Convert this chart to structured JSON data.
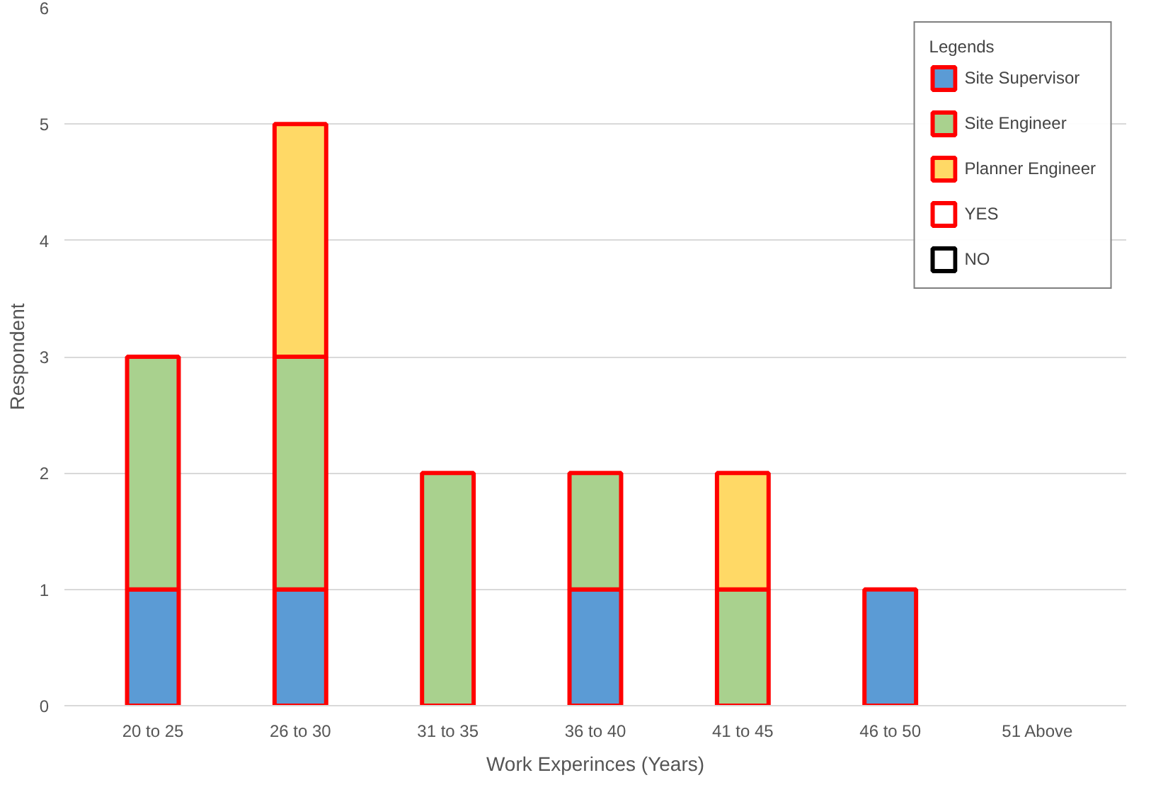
{
  "chart_data": {
    "type": "bar",
    "stacked": true,
    "xlabel": "Work Experinces (Years)",
    "ylabel": "Respondent",
    "legend_title": "Legends",
    "categories": [
      "20 to 25",
      "26 to 30",
      "31 to 35",
      "36 to 40",
      "41 to 45",
      "46 to 50",
      "51 Above"
    ],
    "series": [
      {
        "name": "Site Supervisor",
        "color": "#5b9bd5",
        "values": [
          1,
          1,
          0,
          1,
          0,
          1,
          0
        ]
      },
      {
        "name": "Site Engineer",
        "color": "#a9d18e",
        "values": [
          2,
          2,
          2,
          1,
          1,
          0,
          0
        ]
      },
      {
        "name": "Planner Engineer",
        "color": "#ffd966",
        "values": [
          0,
          2,
          0,
          0,
          1,
          0,
          0
        ]
      },
      {
        "name": "YES",
        "color": "#ff0000",
        "values": [
          null,
          null,
          null,
          null,
          null,
          null,
          null
        ]
      },
      {
        "name": "NO",
        "color": "#000000",
        "values": [
          null,
          null,
          null,
          null,
          null,
          null,
          null
        ]
      }
    ],
    "ylim": [
      0,
      6
    ],
    "yticks": [
      0,
      1,
      2,
      3,
      4,
      5,
      6
    ],
    "grid": "y",
    "legend": "top right"
  }
}
